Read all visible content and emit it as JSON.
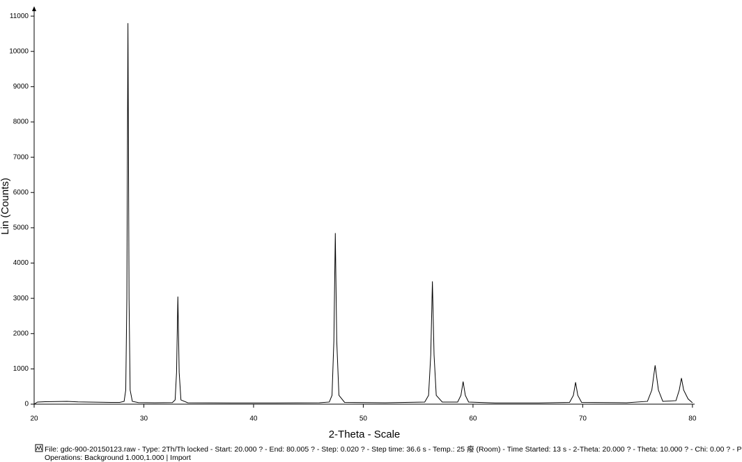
{
  "chart_data": {
    "type": "line",
    "x_label": "2-Theta - Scale",
    "y_label": "Lin (Counts)",
    "file_info": "File: gdc-900-20150123.raw - Type: 2Th/Th locked - Start: 20.000 ? - End: 80.005 ? - Step: 0.020 ? - Step time: 36.6 s - Temp.: 25 癈 (Room) - Time Started: 13 s - 2-Theta: 20.000 ? - Theta: 10.000 ? - Chi: 0.00 ? - P",
    "operations": "Operations: Background 1.000,1.000 | Import",
    "color": "#000000",
    "xlim": [
      20,
      80.2
    ],
    "ylim": [
      0,
      11200
    ],
    "xticks": [
      20,
      30,
      40,
      50,
      60,
      70,
      80
    ],
    "yticks": [
      0,
      1000,
      2000,
      3000,
      4000,
      5000,
      6000,
      7000,
      8000,
      9000,
      10000,
      11000
    ],
    "x": [
      20,
      20.3,
      21,
      22,
      23,
      24,
      25,
      26,
      27,
      27.8,
      28.2,
      28.35,
      28.45,
      28.55,
      28.65,
      28.75,
      28.95,
      29.5,
      31,
      32.6,
      32.85,
      32.98,
      33.1,
      33.22,
      33.38,
      34,
      38,
      42,
      46,
      46.9,
      47.15,
      47.32,
      47.45,
      47.58,
      47.78,
      48.3,
      52,
      55.6,
      55.95,
      56.15,
      56.3,
      56.45,
      56.65,
      57.2,
      58.6,
      58.9,
      59.1,
      59.3,
      59.6,
      62,
      66,
      68.8,
      69.15,
      69.35,
      69.55,
      69.9,
      74,
      75.9,
      76.3,
      76.6,
      76.9,
      77.3,
      78.5,
      78.8,
      79.0,
      79.2,
      79.6,
      80
    ],
    "values": [
      0,
      60,
      70,
      75,
      80,
      65,
      60,
      55,
      50,
      50,
      80,
      400,
      3000,
      10800,
      3000,
      400,
      80,
      45,
      40,
      45,
      120,
      900,
      3050,
      900,
      120,
      40,
      35,
      35,
      40,
      60,
      250,
      1800,
      4850,
      1800,
      250,
      50,
      40,
      60,
      250,
      1400,
      3480,
      1400,
      250,
      60,
      60,
      250,
      640,
      250,
      60,
      35,
      35,
      50,
      250,
      620,
      250,
      50,
      40,
      80,
      400,
      1100,
      400,
      80,
      100,
      400,
      740,
      400,
      150,
      40
    ]
  }
}
